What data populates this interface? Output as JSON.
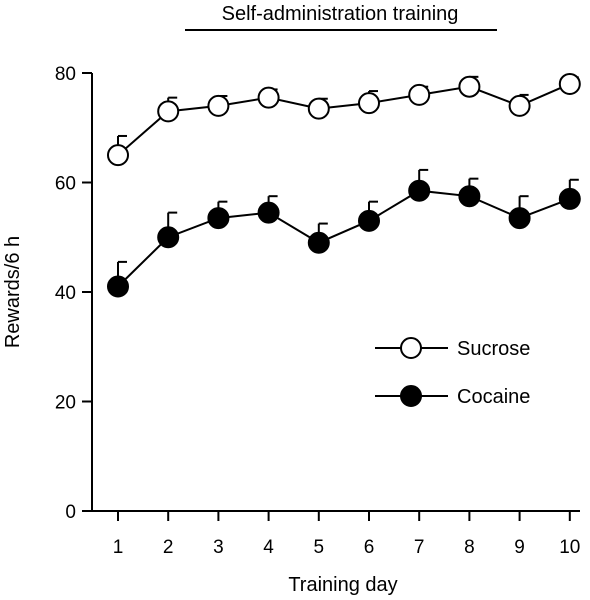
{
  "chart_data": {
    "type": "line",
    "title": "Self-administration training",
    "xlabel": "Training day",
    "ylabel": "Rewards/6 h",
    "x": [
      1,
      2,
      3,
      4,
      5,
      6,
      7,
      8,
      9,
      10
    ],
    "xticks": [
      "1",
      "2",
      "3",
      "4",
      "5",
      "6",
      "7",
      "8",
      "9",
      "10"
    ],
    "ylim": [
      0,
      80
    ],
    "yticks": [
      "0",
      "20",
      "40",
      "60",
      "80"
    ],
    "legend_position": "center-right",
    "series": [
      {
        "name": "Sucrose",
        "marker": "open-circle",
        "color": "#000000",
        "values": [
          65,
          73,
          74,
          75.5,
          73.5,
          74.5,
          76,
          77.5,
          74,
          78
        ],
        "error": [
          3.5,
          2.5,
          1.8,
          1.5,
          1.8,
          2.2,
          1.5,
          1.8,
          2.0,
          1.2
        ]
      },
      {
        "name": "Cocaine",
        "marker": "filled-circle",
        "color": "#000000",
        "values": [
          41,
          50,
          53.5,
          54.5,
          49,
          53,
          58.5,
          57.5,
          53.5,
          57
        ],
        "error": [
          4.5,
          4.5,
          3.0,
          3.0,
          3.5,
          3.5,
          3.8,
          3.2,
          4.0,
          3.5
        ]
      }
    ]
  }
}
